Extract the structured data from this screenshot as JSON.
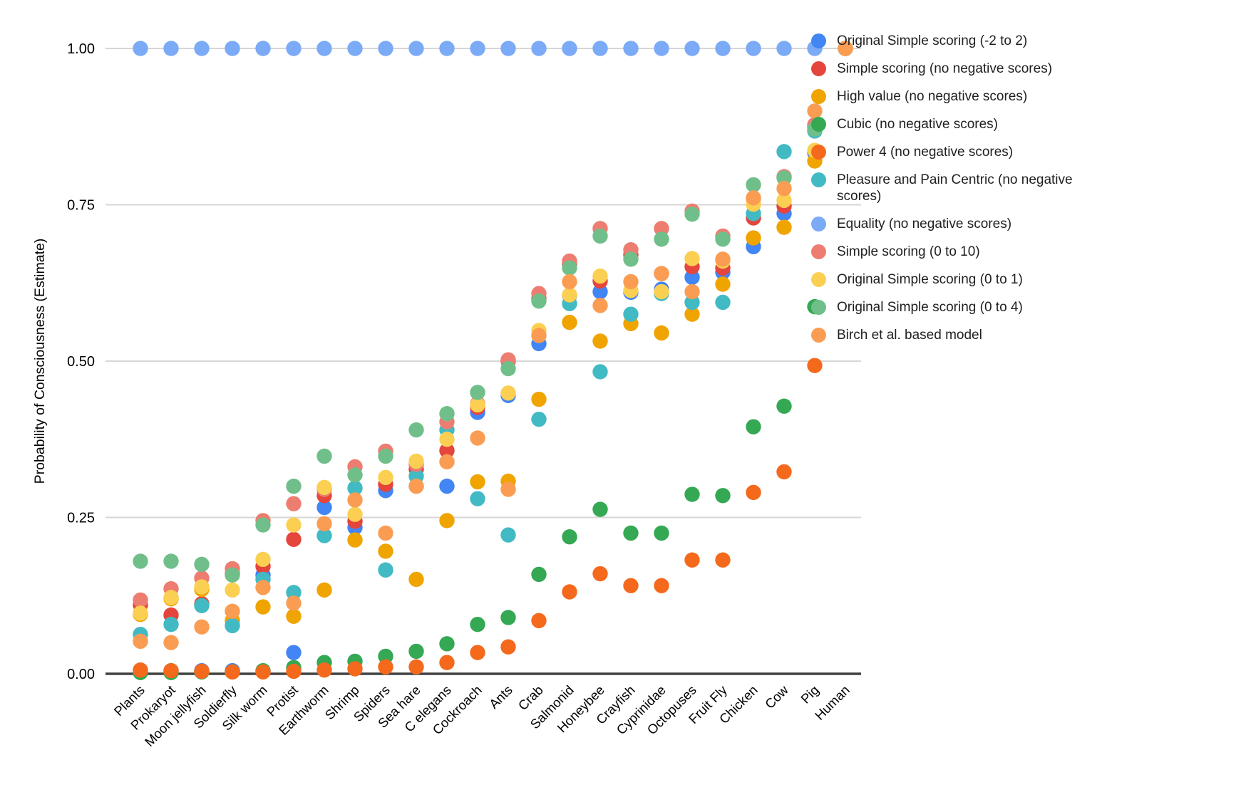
{
  "chart_data": {
    "type": "scatter",
    "title": "",
    "ylabel": "Probability of Consciousness (Estimate)",
    "ylim": [
      0,
      1
    ],
    "yticks": [
      "0.00",
      "0.25",
      "0.50",
      "0.75",
      "1.00"
    ],
    "grid": true,
    "legend_position": "right",
    "marker": "circle",
    "axis_color": "#424242",
    "gridline_color": "#d6d6d6",
    "categories": [
      "Plants",
      "Prokaryot",
      "Moon jellyfish",
      "Soldierfly",
      "Silk worm",
      "Protist",
      "Earthworm",
      "Shrimp",
      "Spiders",
      "Sea hare",
      "C elegans",
      "Cockroach",
      "Ants",
      "Crab",
      "Salmonid",
      "Honeybee",
      "Crayfish",
      "Cyprinidae",
      "Octopuses",
      "Fruit Fly",
      "Chicken",
      "Cow",
      "Pig",
      "Human"
    ],
    "series": [
      {
        "name": "Original Simple scoring (-2 to 2)",
        "color": "#4285F4",
        "values": [
          0.005,
          0.005,
          0.005,
          0.005,
          0.158,
          0.034,
          0.266,
          0.234,
          0.293,
          0.3,
          0.3,
          0.418,
          0.445,
          0.528,
          0.605,
          0.611,
          0.61,
          0.615,
          0.634,
          0.642,
          0.683,
          0.736,
          0.833,
          1.0
        ]
      },
      {
        "name": "Simple scoring (no negative scores)",
        "color": "#E5453C",
        "values": [
          0.11,
          0.094,
          0.112,
          0.16,
          0.172,
          0.215,
          0.285,
          0.244,
          0.303,
          0.327,
          0.357,
          0.426,
          0.5,
          0.6,
          0.655,
          0.628,
          0.67,
          0.64,
          0.651,
          0.649,
          0.729,
          0.748,
          0.875,
          1.0
        ]
      },
      {
        "name": "High value (no negative scores)",
        "color": "#F0A400",
        "values": [
          0.095,
          0.12,
          0.135,
          0.085,
          0.107,
          0.092,
          0.134,
          0.214,
          0.196,
          0.151,
          0.245,
          0.307,
          0.308,
          0.439,
          0.562,
          0.532,
          0.56,
          0.545,
          0.575,
          0.623,
          0.697,
          0.714,
          0.82,
          1.0
        ]
      },
      {
        "name": "Cubic (no negative scores)",
        "color": "#34A853",
        "values": [
          0.002,
          0.002,
          0.003,
          0.003,
          0.005,
          0.01,
          0.018,
          0.02,
          0.028,
          0.036,
          0.048,
          0.079,
          0.09,
          0.159,
          0.219,
          0.263,
          0.225,
          0.225,
          0.287,
          0.285,
          0.395,
          0.428,
          0.587,
          1.0
        ]
      },
      {
        "name": "Power 4 (no negative scores)",
        "color": "#F5691D",
        "values": [
          0.006,
          0.005,
          0.004,
          0.003,
          0.003,
          0.004,
          0.006,
          0.008,
          0.011,
          0.011,
          0.018,
          0.034,
          0.043,
          0.085,
          0.131,
          0.16,
          0.141,
          0.141,
          0.182,
          0.182,
          0.29,
          0.323,
          0.493,
          1.0
        ]
      },
      {
        "name": "Pleasure and Pain Centric (no negative scores)",
        "color": "#42BAC4",
        "values": [
          0.063,
          0.079,
          0.109,
          0.077,
          0.151,
          0.13,
          0.221,
          0.297,
          0.166,
          0.316,
          0.39,
          0.28,
          0.222,
          0.407,
          0.592,
          0.483,
          0.575,
          0.608,
          0.594,
          0.594,
          0.736,
          0.835,
          0.868,
          1.0
        ]
      },
      {
        "name": "Equality (no negative scores)",
        "color": "#7BAAF7",
        "values": [
          1.0,
          1.0,
          1.0,
          1.0,
          1.0,
          1.0,
          1.0,
          1.0,
          1.0,
          1.0,
          1.0,
          1.0,
          1.0,
          1.0,
          1.0,
          1.0,
          1.0,
          1.0,
          1.0,
          1.0,
          1.0,
          1.0,
          1.0,
          1.0
        ]
      },
      {
        "name": "Simple scoring (0 to 10)",
        "color": "#ED7D70",
        "values": [
          0.118,
          0.136,
          0.153,
          0.168,
          0.245,
          0.272,
          0.295,
          0.331,
          0.356,
          0.335,
          0.403,
          0.432,
          0.502,
          0.608,
          0.66,
          0.712,
          0.678,
          0.712,
          0.74,
          0.7,
          0.76,
          0.795,
          0.878,
          1.0
        ]
      },
      {
        "name": "Original Simple scoring (0 to 1)",
        "color": "#FBD052",
        "values": [
          0.097,
          0.122,
          0.139,
          0.134,
          0.183,
          0.238,
          0.298,
          0.255,
          0.314,
          0.34,
          0.375,
          0.43,
          0.449,
          0.549,
          0.606,
          0.636,
          0.613,
          0.611,
          0.664,
          0.66,
          0.751,
          0.757,
          0.837,
          1.0
        ]
      },
      {
        "name": "Original Simple scoring (0 to 4)",
        "color": "#70BF8A",
        "values": [
          0.18,
          0.18,
          0.175,
          0.158,
          0.238,
          0.3,
          0.348,
          0.318,
          0.348,
          0.39,
          0.416,
          0.45,
          0.488,
          0.596,
          0.649,
          0.7,
          0.663,
          0.695,
          0.735,
          0.695,
          0.782,
          0.793,
          0.871,
          1.0
        ]
      },
      {
        "name": "Birch et al. based model",
        "color": "#FA9D53",
        "values": [
          0.052,
          0.05,
          0.075,
          0.1,
          0.138,
          0.113,
          0.24,
          0.278,
          0.225,
          0.3,
          0.339,
          0.377,
          0.295,
          0.541,
          0.627,
          0.589,
          0.627,
          0.64,
          0.611,
          0.663,
          0.761,
          0.776,
          0.9,
          1.0
        ]
      }
    ]
  }
}
